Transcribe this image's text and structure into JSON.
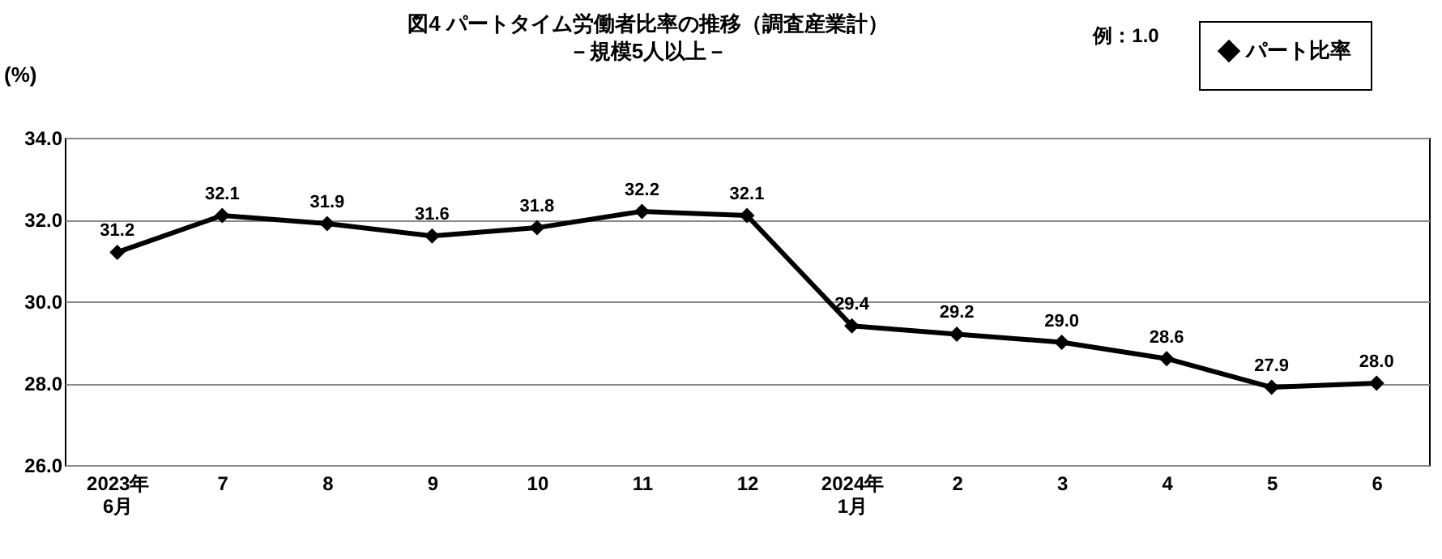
{
  "chart_data": {
    "type": "line",
    "title": "図4 パートタイム労働者比率の推移（調査産業計）",
    "subtitle": "－規模5人以上－",
    "ylabel": "(%)",
    "annotations": [
      "例：1.0"
    ],
    "categories": [
      "2023年\n6月",
      "7",
      "8",
      "9",
      "10",
      "11",
      "12",
      "2024年\n1月",
      "2",
      "3",
      "4",
      "5",
      "6"
    ],
    "series": [
      {
        "name": "パート比率",
        "color": "#000000",
        "values": [
          31.2,
          32.1,
          31.9,
          31.6,
          31.8,
          32.2,
          32.1,
          29.4,
          29.2,
          29.0,
          28.6,
          27.9,
          28.0
        ],
        "value_labels": [
          "31.2",
          "32.1",
          "31.9",
          "31.6",
          "31.8",
          "32.2",
          "32.1",
          "29.4",
          "29.2",
          "29.0",
          "28.6",
          "27.9",
          "28.0"
        ]
      }
    ],
    "ylim": [
      26,
      34
    ],
    "yticks": [
      {
        "value": 26,
        "label": "26.0"
      },
      {
        "value": 28,
        "label": "28.0"
      },
      {
        "value": 30,
        "label": "30.0"
      },
      {
        "value": 32,
        "label": "32.0"
      },
      {
        "value": 34,
        "label": "34.0"
      }
    ],
    "grid": "y",
    "legend": "top right",
    "marker": "diamond",
    "line_style": "solid"
  }
}
